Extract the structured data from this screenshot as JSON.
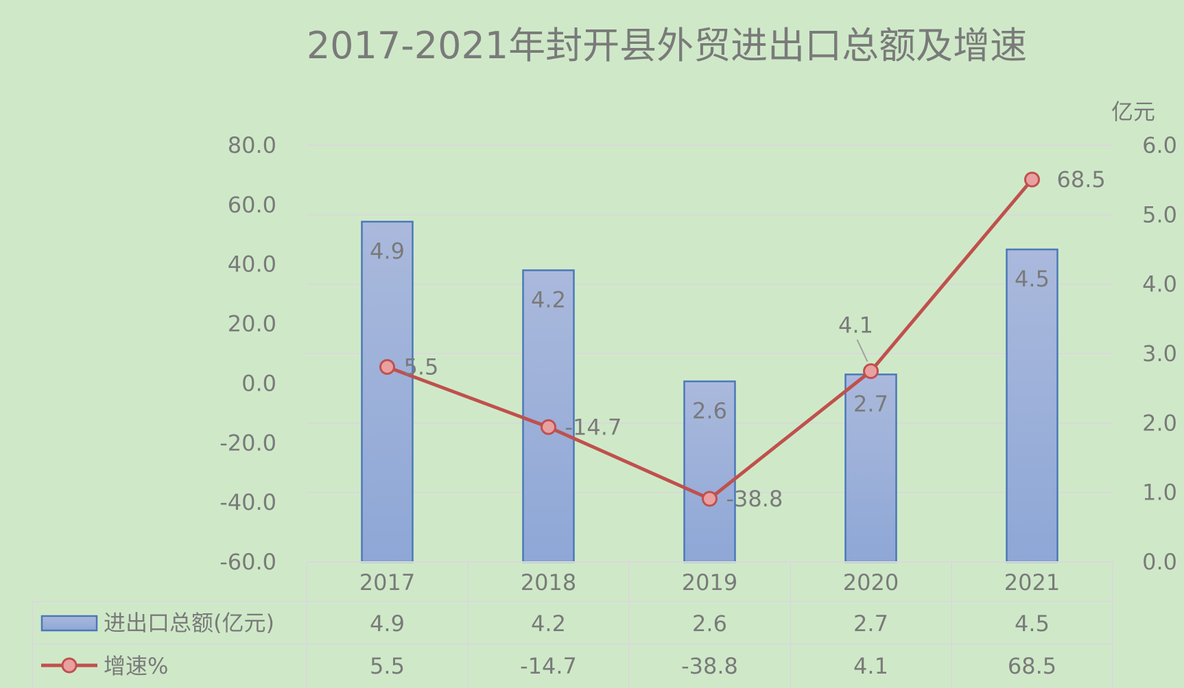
{
  "chart_data": {
    "type": "bar",
    "title": "2017-2021年封开县外贸进出口总额及增速",
    "categories": [
      "2017",
      "2018",
      "2019",
      "2020",
      "2021"
    ],
    "series": [
      {
        "name": "进出口总额(亿元)",
        "type": "bar",
        "axis": "right",
        "values": [
          4.9,
          4.2,
          2.6,
          2.7,
          4.5
        ],
        "labels": [
          "4.9",
          "4.2",
          "2.6",
          "2.7",
          "4.5"
        ]
      },
      {
        "name": "增速%",
        "type": "line",
        "axis": "left",
        "values": [
          5.5,
          -14.7,
          -38.8,
          4.1,
          68.5
        ],
        "labels": [
          "5.5",
          "-14.7",
          "-38.8",
          "4.1",
          "68.5"
        ]
      }
    ],
    "left_axis": {
      "ylim": [
        -60,
        80
      ],
      "ticks": [
        80,
        60,
        40,
        20,
        0,
        -20,
        -40,
        -60
      ],
      "tick_labels": [
        "80.0",
        "60.0",
        "40.0",
        "20.0",
        "0.0",
        "-20.0",
        "-40.0",
        "-60.0"
      ]
    },
    "right_axis": {
      "unit": "亿元",
      "ylim": [
        0,
        6
      ],
      "ticks": [
        6,
        5,
        4,
        3,
        2,
        1,
        0
      ],
      "tick_labels": [
        "6.0",
        "5.0",
        "4.0",
        "3.0",
        "2.0",
        "1.0",
        "0.0"
      ]
    },
    "grid": true,
    "data_table": true,
    "colors": {
      "bar_top": "#aab9dc",
      "bar_bottom": "#8ea7d6",
      "bar_border": "#4a78b8",
      "line": "#c0504d",
      "marker_fill": "#e8a0a0",
      "text": "#7a7a7a",
      "background": "#cfe9c8"
    }
  }
}
